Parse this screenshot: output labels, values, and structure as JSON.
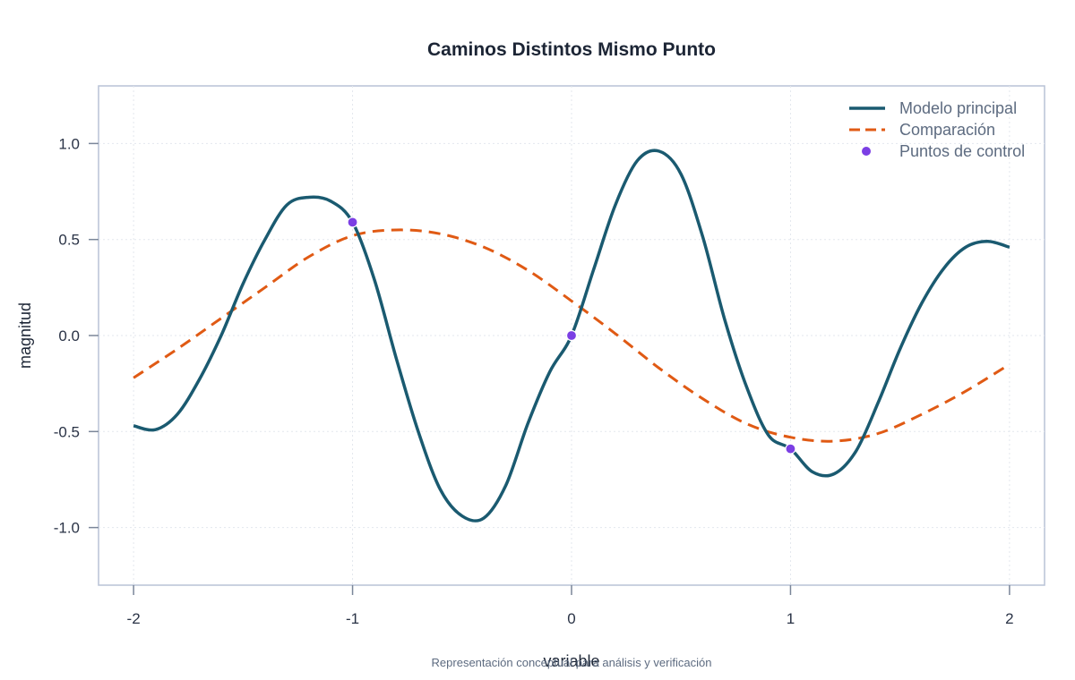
{
  "chart_data": {
    "type": "line",
    "title": "Caminos Distintos Mismo Punto",
    "xlabel": "variable",
    "ylabel": "magnitud",
    "caption": "Representación conceptual para análisis y verificación",
    "xlim": [
      -2.16,
      2.16
    ],
    "ylim": [
      -1.3,
      1.3
    ],
    "xticks": [
      -2,
      -1,
      0,
      1,
      2
    ],
    "xtick_labels": [
      "-2",
      "-1",
      "0",
      "1",
      "2"
    ],
    "yticks": [
      -1.0,
      -0.5,
      0.0,
      0.5,
      1.0
    ],
    "ytick_labels": [
      "-1.0",
      "-0.5",
      "0.0",
      "0.5",
      "1.0"
    ],
    "grid": true,
    "legend_position": "top-right",
    "series": [
      {
        "name": "Modelo principal",
        "style": "solid",
        "color": "#1a5a70",
        "x": [
          -2.0,
          -1.9,
          -1.8,
          -1.7,
          -1.6,
          -1.5,
          -1.4,
          -1.3,
          -1.2,
          -1.1,
          -1.0,
          -0.9,
          -0.8,
          -0.7,
          -0.6,
          -0.5,
          -0.4,
          -0.3,
          -0.2,
          -0.1,
          0.0,
          0.1,
          0.2,
          0.3,
          0.4,
          0.5,
          0.6,
          0.7,
          0.8,
          0.9,
          1.0,
          1.1,
          1.2,
          1.3,
          1.4,
          1.5,
          1.6,
          1.7,
          1.8,
          1.9,
          2.0
        ],
        "y": [
          -0.47,
          -0.49,
          -0.41,
          -0.23,
          0.0,
          0.27,
          0.5,
          0.68,
          0.72,
          0.7,
          0.59,
          0.29,
          -0.12,
          -0.5,
          -0.8,
          -0.94,
          -0.95,
          -0.78,
          -0.46,
          -0.19,
          0.0,
          0.34,
          0.68,
          0.91,
          0.96,
          0.84,
          0.51,
          0.08,
          -0.27,
          -0.52,
          -0.59,
          -0.71,
          -0.72,
          -0.6,
          -0.35,
          -0.07,
          0.17,
          0.35,
          0.46,
          0.49,
          0.46
        ]
      },
      {
        "name": "Comparación",
        "style": "dashed",
        "color": "#e05a14",
        "x": [
          -2.0,
          -1.8,
          -1.6,
          -1.4,
          -1.2,
          -1.0,
          -0.8,
          -0.6,
          -0.4,
          -0.2,
          0.0,
          0.2,
          0.4,
          0.6,
          0.8,
          1.0,
          1.2,
          1.4,
          1.6,
          1.8,
          2.0
        ],
        "y": [
          -0.22,
          -0.07,
          0.09,
          0.25,
          0.41,
          0.52,
          0.55,
          0.53,
          0.46,
          0.34,
          0.18,
          0.01,
          -0.17,
          -0.33,
          -0.46,
          -0.53,
          -0.55,
          -0.51,
          -0.41,
          -0.29,
          -0.15
        ]
      },
      {
        "name": "Puntos de control",
        "style": "points",
        "color": "#7b3fe4",
        "x": [
          -1,
          0,
          1
        ],
        "y": [
          0.59,
          0.0,
          -0.59
        ]
      }
    ]
  }
}
